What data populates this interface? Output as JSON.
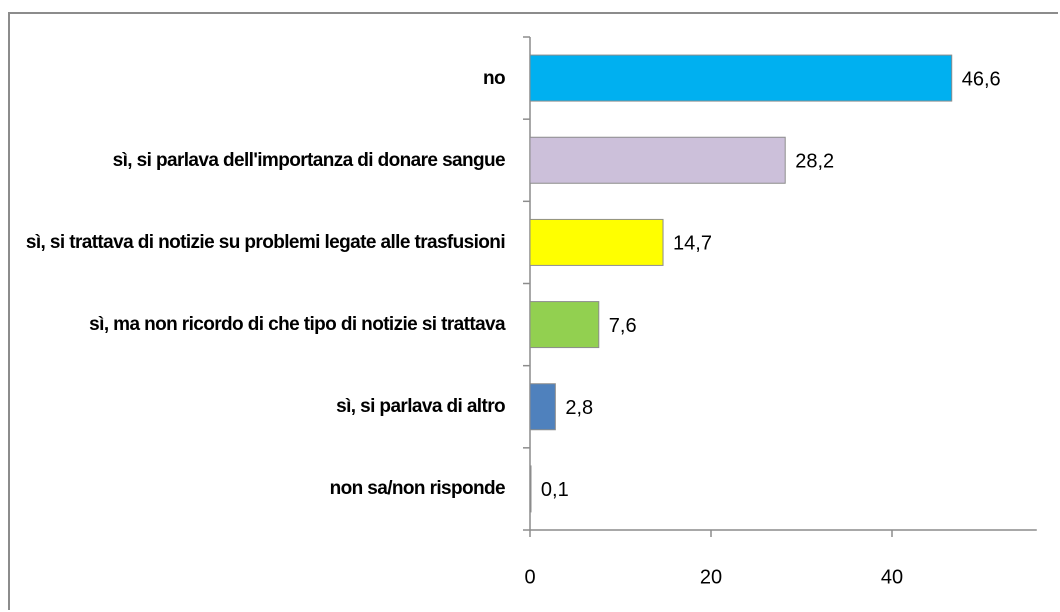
{
  "chart_data": {
    "type": "bar",
    "orientation": "horizontal",
    "categories": [
      "no",
      "sì, si parlava dell'importanza di donare sangue",
      "sì, si trattava di notizie su problemi legate alle trasfusioni",
      "sì, ma non ricordo di che tipo di notizie si trattava",
      "sì, si parlava di altro",
      "non sa/non risponde"
    ],
    "values": [
      46.6,
      28.2,
      14.7,
      7.6,
      2.8,
      0.1
    ],
    "value_labels": [
      "46,6",
      "28,2",
      "14,7",
      "7,6",
      "2,8",
      "0,1"
    ],
    "colors": [
      "#00b0f0",
      "#ccc0da",
      "#ffff00",
      "#92d050",
      "#4f81bd",
      "#7f7f7f"
    ],
    "xlim": [
      0,
      56
    ],
    "xticks": [
      0,
      20,
      40
    ]
  }
}
